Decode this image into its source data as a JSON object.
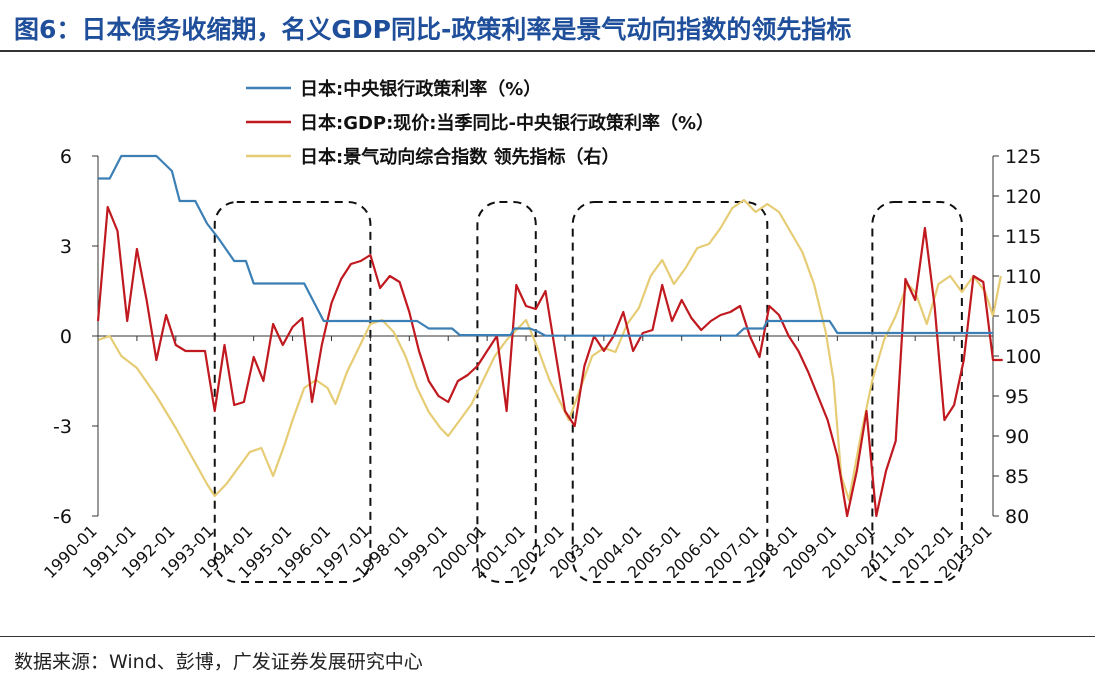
{
  "title": "图6：日本债务收缩期，名义GDP同比-政策利率是景气动向指数的领先指标",
  "source": "数据来源：Wind、彭博，广发证券发展研究中心",
  "colors": {
    "policy": "#3b7fb5",
    "gdp": "#c0191f",
    "leading": "#e6cc74",
    "title": "#1f4e9a"
  },
  "chart_data": {
    "type": "line",
    "left_axis": {
      "ylim": [
        -6,
        6
      ],
      "ticks": [
        "6",
        "3",
        "0",
        "-3",
        "-6"
      ],
      "tick_values": [
        6,
        3,
        0,
        -3,
        -6
      ]
    },
    "right_axis": {
      "ylim": [
        80,
        125
      ],
      "ticks": [
        "125",
        "120",
        "115",
        "110",
        "105",
        "100",
        "95",
        "90",
        "85",
        "80"
      ],
      "tick_values": [
        125,
        120,
        115,
        110,
        105,
        100,
        95,
        90,
        85,
        80
      ]
    },
    "xlim": [
      1990.0,
      2013.0
    ],
    "x_tick_labels": [
      "1990-01",
      "1991-01",
      "1992-01",
      "1993-01",
      "1994-01",
      "1995-01",
      "1996-01",
      "1997-01",
      "1998-01",
      "1999-01",
      "2000-01",
      "2001-01",
      "2002-01",
      "2003-01",
      "2004-01",
      "2005-01",
      "2006-01",
      "2007-01",
      "2008-01",
      "2009-01",
      "2010-01",
      "2011-01",
      "2012-01",
      "2013-01"
    ],
    "x_tick_values": [
      1990,
      1991,
      1992,
      1993,
      1994,
      1995,
      1996,
      1997,
      1998,
      1999,
      2000,
      2001,
      2002,
      2003,
      2004,
      2005,
      2006,
      2007,
      2008,
      2009,
      2010,
      2011,
      2012,
      2013
    ],
    "contraction_periods": [
      [
        1993.0,
        1997.0
      ],
      [
        1999.75,
        2001.25
      ],
      [
        2002.2,
        2007.2
      ],
      [
        2009.9,
        2012.2
      ]
    ],
    "series": [
      {
        "name": "日本:中央银行政策利率（%）",
        "axis": "left",
        "color": "#3b7fb5",
        "points": [
          [
            1990.0,
            5.25
          ],
          [
            1990.3,
            5.25
          ],
          [
            1990.6,
            6.0
          ],
          [
            1991.5,
            6.0
          ],
          [
            1991.9,
            5.5
          ],
          [
            1992.1,
            4.5
          ],
          [
            1992.5,
            4.5
          ],
          [
            1992.8,
            3.75
          ],
          [
            1993.1,
            3.25
          ],
          [
            1993.5,
            2.5
          ],
          [
            1993.8,
            2.5
          ],
          [
            1994.0,
            1.75
          ],
          [
            1995.3,
            1.75
          ],
          [
            1995.6,
            1.0
          ],
          [
            1995.8,
            0.5
          ],
          [
            1997.0,
            0.5
          ],
          [
            1998.2,
            0.5
          ],
          [
            1998.5,
            0.25
          ],
          [
            1999.1,
            0.25
          ],
          [
            1999.3,
            0.03
          ],
          [
            2000.6,
            0.03
          ],
          [
            2000.7,
            0.25
          ],
          [
            2001.1,
            0.25
          ],
          [
            2001.3,
            0.15
          ],
          [
            2001.5,
            0.01
          ],
          [
            2006.4,
            0.01
          ],
          [
            2006.6,
            0.25
          ],
          [
            2007.1,
            0.25
          ],
          [
            2007.2,
            0.5
          ],
          [
            2008.8,
            0.5
          ],
          [
            2008.9,
            0.3
          ],
          [
            2009.0,
            0.1
          ],
          [
            2013.0,
            0.1
          ]
        ]
      },
      {
        "name": "日本:GDP:现价:当季同比-中央银行政策利率（%）",
        "axis": "left",
        "color": "#c0191f",
        "points": [
          [
            1990.0,
            0.5
          ],
          [
            1990.25,
            4.3
          ],
          [
            1990.5,
            3.5
          ],
          [
            1990.75,
            0.5
          ],
          [
            1991.0,
            2.9
          ],
          [
            1991.25,
            1.2
          ],
          [
            1991.5,
            -0.8
          ],
          [
            1991.75,
            0.7
          ],
          [
            1992.0,
            -0.3
          ],
          [
            1992.25,
            -0.5
          ],
          [
            1992.5,
            -0.5
          ],
          [
            1992.75,
            -0.5
          ],
          [
            1993.0,
            -2.5
          ],
          [
            1993.25,
            -0.3
          ],
          [
            1993.5,
            -2.3
          ],
          [
            1993.75,
            -2.2
          ],
          [
            1994.0,
            -0.7
          ],
          [
            1994.25,
            -1.5
          ],
          [
            1994.5,
            0.4
          ],
          [
            1994.75,
            -0.3
          ],
          [
            1995.0,
            0.3
          ],
          [
            1995.25,
            0.6
          ],
          [
            1995.5,
            -2.2
          ],
          [
            1995.75,
            -0.3
          ],
          [
            1996.0,
            1.1
          ],
          [
            1996.25,
            1.9
          ],
          [
            1996.5,
            2.4
          ],
          [
            1996.75,
            2.5
          ],
          [
            1997.0,
            2.7
          ],
          [
            1997.25,
            1.6
          ],
          [
            1997.5,
            2.0
          ],
          [
            1997.75,
            1.8
          ],
          [
            1998.0,
            0.8
          ],
          [
            1998.25,
            -0.5
          ],
          [
            1998.5,
            -1.5
          ],
          [
            1998.75,
            -2.0
          ],
          [
            1999.0,
            -2.2
          ],
          [
            1999.25,
            -1.5
          ],
          [
            1999.5,
            -1.3
          ],
          [
            1999.75,
            -1.0
          ],
          [
            2000.0,
            -0.5
          ],
          [
            2000.25,
            0.0
          ],
          [
            2000.5,
            -2.5
          ],
          [
            2000.75,
            1.7
          ],
          [
            2001.0,
            1.0
          ],
          [
            2001.25,
            0.9
          ],
          [
            2001.5,
            1.5
          ],
          [
            2001.75,
            -0.5
          ],
          [
            2002.0,
            -2.5
          ],
          [
            2002.25,
            -3.0
          ],
          [
            2002.5,
            -1.0
          ],
          [
            2002.75,
            0.0
          ],
          [
            2003.0,
            -0.5
          ],
          [
            2003.25,
            0.0
          ],
          [
            2003.5,
            0.8
          ],
          [
            2003.75,
            -0.5
          ],
          [
            2004.0,
            0.1
          ],
          [
            2004.25,
            0.2
          ],
          [
            2004.5,
            1.7
          ],
          [
            2004.75,
            0.5
          ],
          [
            2005.0,
            1.2
          ],
          [
            2005.25,
            0.6
          ],
          [
            2005.5,
            0.2
          ],
          [
            2005.75,
            0.5
          ],
          [
            2006.0,
            0.7
          ],
          [
            2006.25,
            0.8
          ],
          [
            2006.5,
            1.0
          ],
          [
            2006.75,
            0.0
          ],
          [
            2007.0,
            -0.7
          ],
          [
            2007.25,
            1.0
          ],
          [
            2007.5,
            0.7
          ],
          [
            2007.75,
            0.0
          ],
          [
            2008.0,
            -0.5
          ],
          [
            2008.25,
            -1.2
          ],
          [
            2008.5,
            -2.0
          ],
          [
            2008.75,
            -2.8
          ],
          [
            2009.0,
            -4.0
          ],
          [
            2009.25,
            -6.0
          ],
          [
            2009.5,
            -4.5
          ],
          [
            2009.75,
            -2.5
          ],
          [
            2010.0,
            -6.0
          ],
          [
            2010.25,
            -4.5
          ],
          [
            2010.5,
            -3.5
          ],
          [
            2010.75,
            1.9
          ],
          [
            2011.0,
            1.2
          ],
          [
            2011.25,
            3.6
          ],
          [
            2011.5,
            1.0
          ],
          [
            2011.75,
            -2.8
          ],
          [
            2012.0,
            -2.3
          ],
          [
            2012.25,
            -0.8
          ],
          [
            2012.5,
            2.0
          ],
          [
            2012.75,
            1.8
          ],
          [
            2013.0,
            -0.8
          ],
          [
            2013.25,
            -0.8
          ]
        ]
      },
      {
        "name": "日本:景气动向综合指数 领先指标（右）",
        "axis": "right",
        "color": "#e6cc74",
        "points": [
          [
            1990.0,
            102.0
          ],
          [
            1990.3,
            102.5
          ],
          [
            1990.6,
            100.0
          ],
          [
            1991.0,
            98.5
          ],
          [
            1991.5,
            95.0
          ],
          [
            1992.0,
            91.0
          ],
          [
            1992.4,
            87.5
          ],
          [
            1992.8,
            84.0
          ],
          [
            1993.0,
            82.5
          ],
          [
            1993.3,
            84.0
          ],
          [
            1993.6,
            86.0
          ],
          [
            1993.9,
            88.0
          ],
          [
            1994.2,
            88.5
          ],
          [
            1994.5,
            85.0
          ],
          [
            1994.8,
            89.0
          ],
          [
            1995.0,
            92.0
          ],
          [
            1995.3,
            96.0
          ],
          [
            1995.6,
            97.0
          ],
          [
            1995.9,
            96.0
          ],
          [
            1996.1,
            94.0
          ],
          [
            1996.4,
            98.0
          ],
          [
            1996.7,
            101.0
          ],
          [
            1997.0,
            104.0
          ],
          [
            1997.3,
            104.5
          ],
          [
            1997.6,
            103.0
          ],
          [
            1997.9,
            100.0
          ],
          [
            1998.2,
            96.0
          ],
          [
            1998.5,
            93.0
          ],
          [
            1998.8,
            91.0
          ],
          [
            1999.0,
            90.0
          ],
          [
            1999.3,
            92.0
          ],
          [
            1999.6,
            94.0
          ],
          [
            1999.9,
            97.0
          ],
          [
            2000.2,
            100.0
          ],
          [
            2000.5,
            102.0
          ],
          [
            2000.8,
            103.5
          ],
          [
            2001.0,
            104.5
          ],
          [
            2001.3,
            101.0
          ],
          [
            2001.6,
            97.0
          ],
          [
            2001.9,
            94.0
          ],
          [
            2002.1,
            92.0
          ],
          [
            2002.4,
            96.0
          ],
          [
            2002.7,
            100.0
          ],
          [
            2003.0,
            101.0
          ],
          [
            2003.3,
            100.5
          ],
          [
            2003.6,
            104.0
          ],
          [
            2003.9,
            106.0
          ],
          [
            2004.2,
            110.0
          ],
          [
            2004.5,
            112.0
          ],
          [
            2004.8,
            109.0
          ],
          [
            2005.1,
            111.0
          ],
          [
            2005.4,
            113.5
          ],
          [
            2005.7,
            114.0
          ],
          [
            2006.0,
            116.0
          ],
          [
            2006.3,
            118.5
          ],
          [
            2006.6,
            119.5
          ],
          [
            2006.9,
            118.0
          ],
          [
            2007.2,
            119.0
          ],
          [
            2007.5,
            118.0
          ],
          [
            2007.8,
            115.5
          ],
          [
            2008.1,
            113.0
          ],
          [
            2008.4,
            109.0
          ],
          [
            2008.7,
            103.0
          ],
          [
            2008.9,
            97.0
          ],
          [
            2009.1,
            85.0
          ],
          [
            2009.3,
            82.0
          ],
          [
            2009.6,
            90.0
          ],
          [
            2009.9,
            97.0
          ],
          [
            2010.2,
            102.0
          ],
          [
            2010.5,
            105.0
          ],
          [
            2010.8,
            109.0
          ],
          [
            2011.0,
            108.0
          ],
          [
            2011.3,
            104.0
          ],
          [
            2011.6,
            109.0
          ],
          [
            2011.9,
            110.0
          ],
          [
            2012.2,
            108.0
          ],
          [
            2012.5,
            110.0
          ],
          [
            2012.8,
            108.0
          ],
          [
            2013.0,
            105.0
          ],
          [
            2013.2,
            110.0
          ]
        ]
      }
    ]
  }
}
